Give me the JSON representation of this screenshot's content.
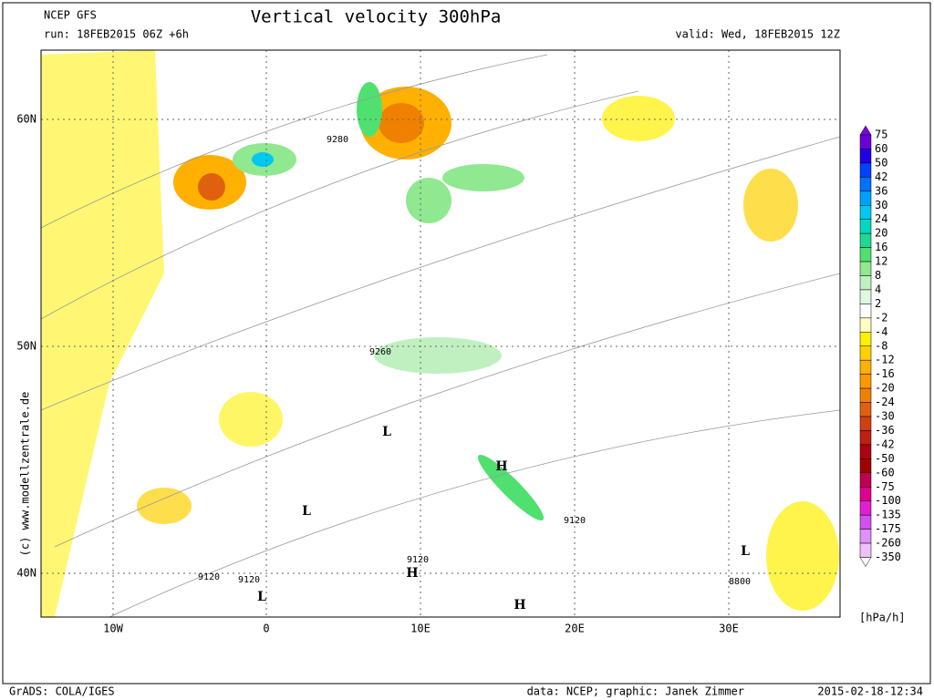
{
  "header": {
    "model": "NCEP GFS",
    "run": "run: 18FEB2015 06Z +6h",
    "title": "Vertical velocity 300hPa",
    "valid": "valid: Wed, 18FEB2015 12Z"
  },
  "map": {
    "lat_labels": [
      "60N",
      "50N",
      "40N"
    ],
    "lon_labels": [
      "10W",
      "0",
      "10E",
      "20E",
      "30E"
    ],
    "contour_labels": [
      "9280",
      "9260",
      "9120",
      "9120",
      "9120",
      "9120",
      "8800"
    ],
    "pressure_centers": [
      "L",
      "L",
      "L",
      "L",
      "H",
      "H",
      "H"
    ],
    "copyright": "(c) www.modellzentrale.de"
  },
  "colorbar": {
    "labels": [
      "75",
      "60",
      "50",
      "42",
      "36",
      "30",
      "24",
      "20",
      "16",
      "12",
      "8",
      "4",
      "2",
      "-2",
      "-4",
      "-8",
      "-12",
      "-16",
      "-20",
      "-24",
      "-30",
      "-36",
      "-42",
      "-50",
      "-60",
      "-75",
      "-100",
      "-135",
      "-175",
      "-260",
      "-350"
    ],
    "colors": [
      "#8000e0",
      "#6a00d8",
      "#2000e8",
      "#0040ff",
      "#0070ff",
      "#00a0ff",
      "#00c8f0",
      "#00d8c0",
      "#20d890",
      "#50e070",
      "#90e890",
      "#c0f0c0",
      "#e0f8e0",
      "#ffffff",
      "#fffcc0",
      "#fff000",
      "#ffd000",
      "#ffb000",
      "#ff9800",
      "#f08000",
      "#e06010",
      "#d04010",
      "#c02010",
      "#b00010",
      "#a00000",
      "#c00050",
      "#e00090",
      "#e020d0",
      "#d050f0",
      "#e090f8",
      "#f0c0f8",
      "#ffffff"
    ],
    "unit": "[hPa/h]"
  },
  "footer": {
    "left": "GrADS: COLA/IGES",
    "credit": "data: NCEP; graphic: Janek Zimmer",
    "timestamp": "2015-02-18-12:34"
  }
}
